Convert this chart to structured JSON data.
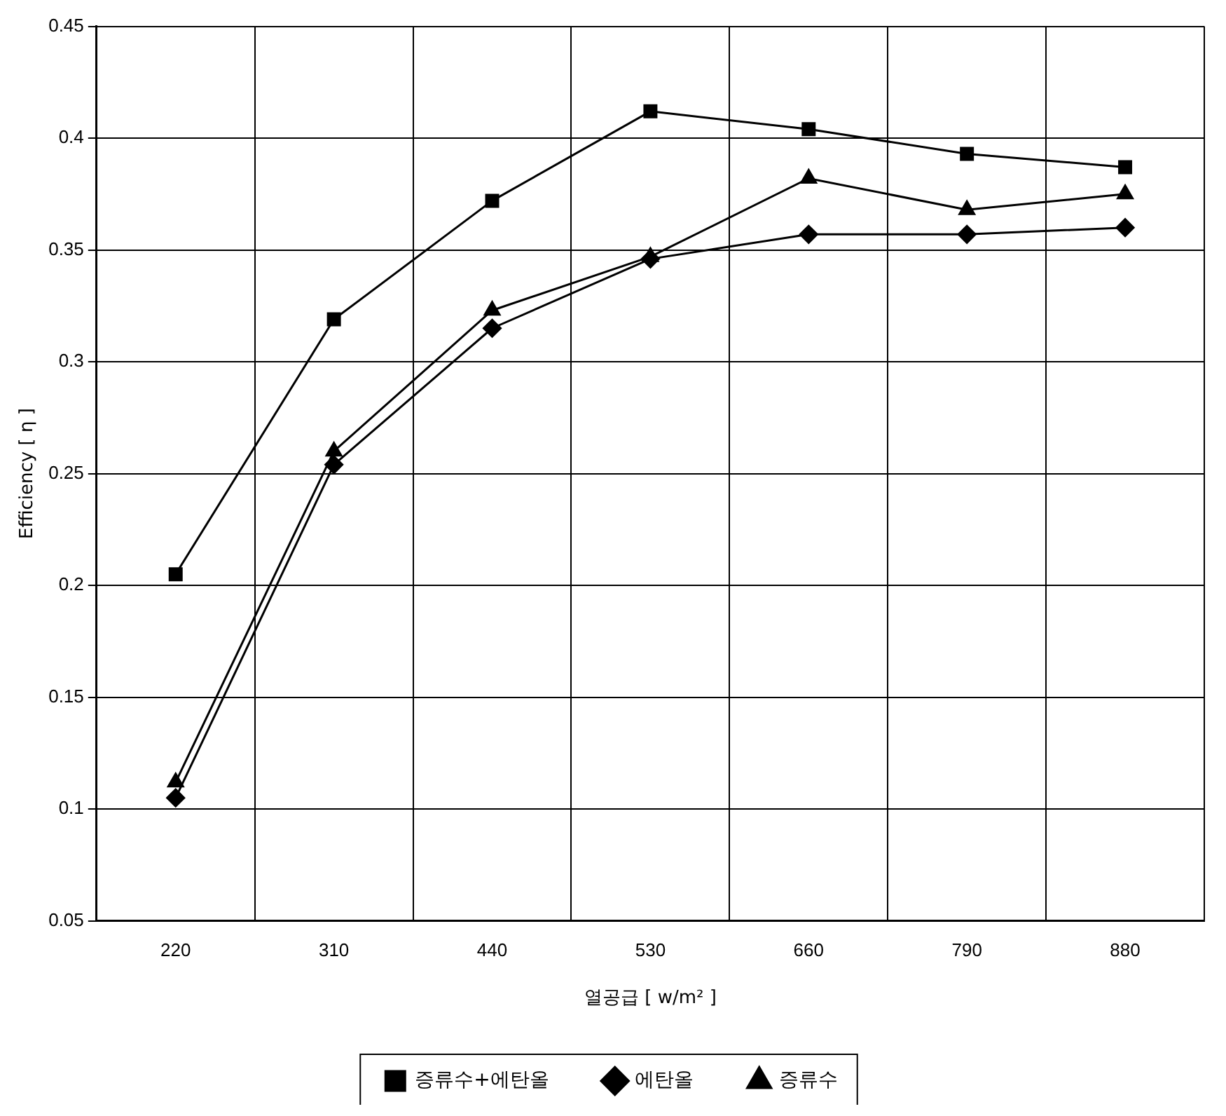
{
  "chart_data": {
    "type": "line",
    "xlabel": "열공급 [ w/m² ]",
    "ylabel": "Efficiency [ η ]",
    "categories": [
      "220",
      "310",
      "440",
      "530",
      "660",
      "790",
      "880"
    ],
    "series": [
      {
        "name": "증류수+에탄올",
        "color": "#000000",
        "marker": "square",
        "values": [
          0.205,
          0.319,
          0.372,
          0.412,
          0.404,
          0.393,
          0.387
        ]
      },
      {
        "name": "에탄올",
        "color": "#000000",
        "marker": "diamond",
        "values": [
          0.105,
          0.254,
          0.315,
          0.346,
          0.357,
          0.357,
          0.36
        ]
      },
      {
        "name": "증류수",
        "color": "#000000",
        "marker": "triangle",
        "values": [
          0.112,
          0.26,
          0.323,
          0.347,
          0.382,
          0.368,
          0.375
        ]
      }
    ],
    "ylim": [
      0.05,
      0.45
    ],
    "yticks": [
      0.05,
      0.1,
      0.15,
      0.2,
      0.25,
      0.3,
      0.35,
      0.4,
      0.45
    ],
    "grid": true,
    "legend": "bottom",
    "line_style": "solid"
  }
}
